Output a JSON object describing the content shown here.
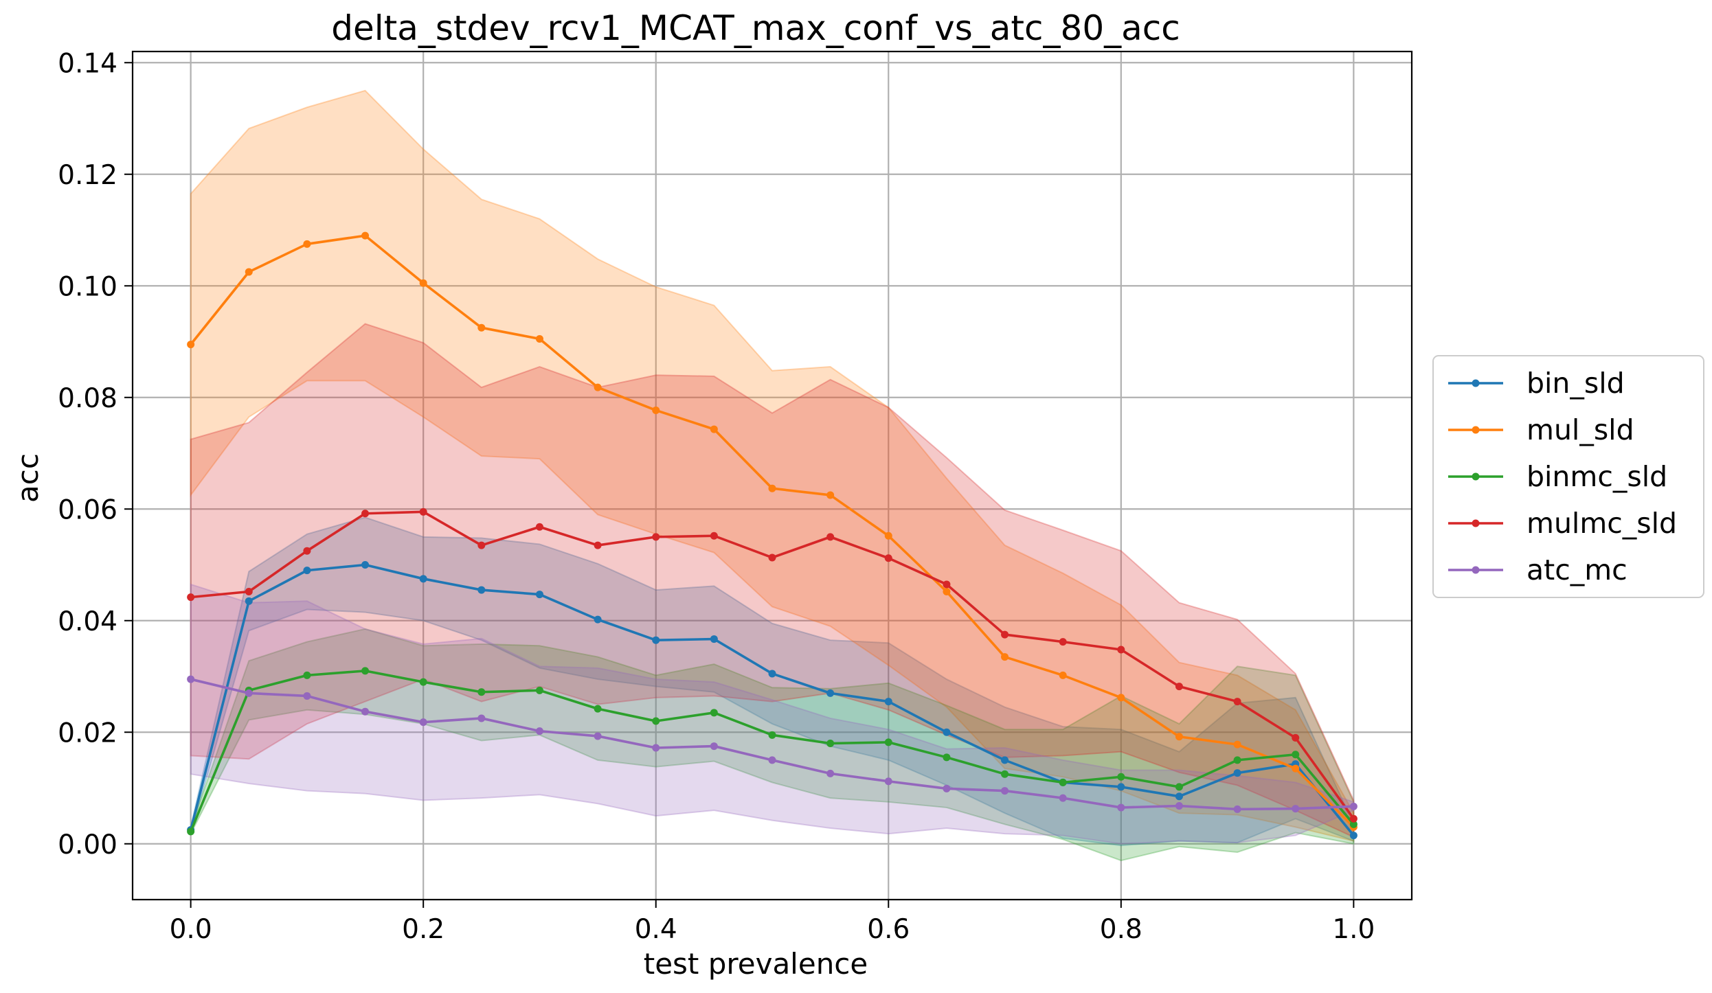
{
  "chart_data": {
    "type": "line",
    "title": "delta_stdev_rcv1_MCAT_max_conf_vs_atc_80_acc",
    "xlabel": "test prevalence",
    "ylabel": "acc",
    "xlim": [
      -0.05,
      1.05
    ],
    "ylim": [
      -0.01,
      0.142
    ],
    "xticks": [
      0.0,
      0.2,
      0.4,
      0.6,
      0.8,
      1.0
    ],
    "xtick_labels": [
      "0.0",
      "0.2",
      "0.4",
      "0.6",
      "0.8",
      "1.0"
    ],
    "yticks": [
      0.0,
      0.02,
      0.04,
      0.06,
      0.08,
      0.1,
      0.12,
      0.14
    ],
    "ytick_labels": [
      "0.00",
      "0.02",
      "0.04",
      "0.06",
      "0.08",
      "0.10",
      "0.12",
      "0.14"
    ],
    "grid": true,
    "legend_position": "right, outside plot",
    "x": [
      0.0,
      0.05,
      0.1,
      0.15,
      0.2,
      0.25,
      0.3,
      0.35,
      0.4,
      0.45,
      0.5,
      0.55,
      0.6,
      0.65,
      0.7,
      0.75,
      0.8,
      0.85,
      0.9,
      0.95,
      1.0
    ],
    "series": [
      {
        "name": "bin_sld",
        "color": "#1f77b4",
        "values": [
          0.0025,
          0.0435,
          0.049,
          0.05,
          0.0475,
          0.0455,
          0.0447,
          0.0402,
          0.0365,
          0.0367,
          0.0305,
          0.027,
          0.0255,
          0.02,
          0.015,
          0.011,
          0.0102,
          0.0085,
          0.0127,
          0.0143,
          0.0015
        ],
        "lower": [
          0.002,
          0.0382,
          0.042,
          0.0415,
          0.04,
          0.0365,
          0.0315,
          0.0295,
          0.0282,
          0.0272,
          0.0215,
          0.0175,
          0.015,
          0.0105,
          0.0055,
          0.001,
          -0.0003,
          0.0005,
          0.0002,
          0.0045,
          0.0005
        ],
        "upper": [
          0.003,
          0.0488,
          0.0555,
          0.0585,
          0.055,
          0.0548,
          0.0537,
          0.0502,
          0.0455,
          0.0462,
          0.0395,
          0.0365,
          0.036,
          0.0295,
          0.0245,
          0.021,
          0.0205,
          0.0165,
          0.0252,
          0.0262,
          0.0035
        ]
      },
      {
        "name": "mul_sld",
        "color": "#ff7f0e",
        "values": [
          0.0895,
          0.1025,
          0.1075,
          0.109,
          0.1005,
          0.0925,
          0.0905,
          0.0818,
          0.0777,
          0.0743,
          0.0637,
          0.0625,
          0.0552,
          0.0452,
          0.0335,
          0.0302,
          0.0262,
          0.0192,
          0.0178,
          0.0135,
          0.003
        ],
        "lower": [
          0.0625,
          0.0765,
          0.083,
          0.083,
          0.0765,
          0.0695,
          0.069,
          0.059,
          0.0555,
          0.0522,
          0.0425,
          0.039,
          0.032,
          0.0245,
          0.0135,
          0.012,
          0.0095,
          0.0055,
          0.0052,
          0.003,
          0.0005
        ],
        "upper": [
          0.1165,
          0.1282,
          0.132,
          0.135,
          0.1245,
          0.1155,
          0.112,
          0.1048,
          0.0998,
          0.0965,
          0.0848,
          0.0855,
          0.0782,
          0.0655,
          0.0535,
          0.0485,
          0.0428,
          0.0325,
          0.0302,
          0.024,
          0.0055
        ]
      },
      {
        "name": "binmc_sld",
        "color": "#2ca02c",
        "values": [
          0.0022,
          0.0275,
          0.0302,
          0.031,
          0.029,
          0.0272,
          0.0275,
          0.0242,
          0.022,
          0.0235,
          0.0195,
          0.018,
          0.0182,
          0.0155,
          0.0125,
          0.011,
          0.012,
          0.0102,
          0.015,
          0.016,
          0.0035
        ],
        "lower": [
          0.0018,
          0.0222,
          0.024,
          0.0232,
          0.0215,
          0.0185,
          0.0195,
          0.015,
          0.0138,
          0.0148,
          0.011,
          0.0082,
          0.0075,
          0.0065,
          0.0035,
          0.0008,
          -0.003,
          -0.0005,
          -0.0015,
          0.002,
          0.0
        ],
        "upper": [
          0.0028,
          0.0328,
          0.0362,
          0.0385,
          0.0355,
          0.0358,
          0.0355,
          0.0335,
          0.0302,
          0.0322,
          0.028,
          0.0278,
          0.0288,
          0.0248,
          0.0205,
          0.0205,
          0.0265,
          0.0215,
          0.0318,
          0.0302,
          0.0075
        ]
      },
      {
        "name": "mulmc_sld",
        "color": "#d62728",
        "values": [
          0.0442,
          0.0452,
          0.0525,
          0.0592,
          0.0595,
          0.0535,
          0.0568,
          0.0535,
          0.055,
          0.0552,
          0.0513,
          0.055,
          0.0512,
          0.0465,
          0.0375,
          0.0362,
          0.0348,
          0.0282,
          0.0255,
          0.019,
          0.0045
        ],
        "lower": [
          0.0158,
          0.0152,
          0.0215,
          0.0255,
          0.0295,
          0.0255,
          0.0282,
          0.025,
          0.0262,
          0.0265,
          0.0255,
          0.027,
          0.024,
          0.0195,
          0.0155,
          0.0158,
          0.0165,
          0.0128,
          0.0105,
          0.006,
          0.0012
        ],
        "upper": [
          0.0725,
          0.0755,
          0.0845,
          0.0932,
          0.0898,
          0.0818,
          0.0855,
          0.0818,
          0.084,
          0.0838,
          0.0772,
          0.0832,
          0.0782,
          0.0692,
          0.0598,
          0.0562,
          0.0525,
          0.0432,
          0.0402,
          0.0305,
          0.0078
        ]
      },
      {
        "name": "atc_mc",
        "color": "#9467bd",
        "values": [
          0.0295,
          0.027,
          0.0265,
          0.0237,
          0.0218,
          0.0225,
          0.0202,
          0.0193,
          0.0172,
          0.0175,
          0.015,
          0.0126,
          0.0112,
          0.0099,
          0.0095,
          0.0082,
          0.0065,
          0.0068,
          0.0062,
          0.0063,
          0.0067
        ],
        "lower": [
          0.0125,
          0.0108,
          0.0095,
          0.009,
          0.0078,
          0.0082,
          0.0088,
          0.0072,
          0.005,
          0.006,
          0.0042,
          0.0028,
          0.0018,
          0.0028,
          0.0018,
          0.0015,
          0.0,
          0.0005,
          0.0002,
          0.0015,
          0.006
        ],
        "upper": [
          0.0465,
          0.0432,
          0.0435,
          0.0385,
          0.0358,
          0.0368,
          0.0318,
          0.0315,
          0.0295,
          0.029,
          0.0258,
          0.0225,
          0.0205,
          0.017,
          0.0172,
          0.015,
          0.0132,
          0.0132,
          0.0122,
          0.011,
          0.0075
        ]
      }
    ]
  }
}
